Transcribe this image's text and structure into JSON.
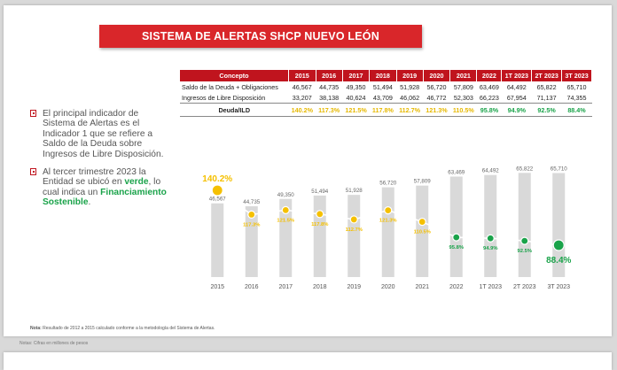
{
  "title": "SISTEMA DE ALERTAS SHCP NUEVO LEÓN",
  "table": {
    "header": [
      "Concepto",
      "2015",
      "2016",
      "2017",
      "2018",
      "2019",
      "2020",
      "2021",
      "2022",
      "1T 2023",
      "2T 2023",
      "3T 2023"
    ],
    "rows": [
      {
        "concept": "Saldo de la Deuda + Obligaciones",
        "values": [
          "46,567",
          "44,735",
          "49,350",
          "51,494",
          "51,928",
          "56,720",
          "57,809",
          "63,469",
          "64,492",
          "65,822",
          "65,710"
        ]
      },
      {
        "concept": "Ingresos de Libre Disposición",
        "values": [
          "33,207",
          "38,138",
          "40,624",
          "43,709",
          "46,062",
          "46,772",
          "52,303",
          "66,223",
          "67,954",
          "71,137",
          "74,355"
        ]
      }
    ],
    "ratio_row": {
      "concept": "Deuda/ILD",
      "values": [
        "140.2%",
        "117.3%",
        "121.5%",
        "117.8%",
        "112.7%",
        "121.3%",
        "110.5%",
        "95.8%",
        "94.9%",
        "92.5%",
        "88.4%"
      ]
    }
  },
  "bullets": {
    "first": "El principal indicador de Sistema de Alertas es el Indicador 1 que se refiere a Saldo de la Deuda sobre Ingresos de Libre Disposición.",
    "second_pre": "Al tercer trimestre 2023 la Entidad se ubicó en ",
    "second_kw": "verde",
    "second_mid": ", lo cual indica un ",
    "second_kw2": "Financiamiento Sostenible",
    "second_post": "."
  },
  "colors": {
    "red": "#c0141e",
    "yellow": "#f5c000",
    "green": "#1aa34a",
    "bar": "#d9d9d9"
  },
  "chart_data": {
    "type": "bar",
    "categories": [
      "2015",
      "2016",
      "2017",
      "2018",
      "2019",
      "2020",
      "2021",
      "2022",
      "1T 2023",
      "2T 2023",
      "3T 2023"
    ],
    "bar_labels": [
      "46,567",
      "44,735",
      "49,350",
      "51,494",
      "51,928",
      "56,720",
      "57,809",
      "63,469",
      "64,492",
      "65,822",
      "65,710"
    ],
    "values": [
      46567,
      44735,
      49350,
      51494,
      51928,
      56720,
      57809,
      63469,
      64492,
      65822,
      65710
    ],
    "ratio_labels": [
      "140.2%",
      "117.3%",
      "121.5%",
      "117.8%",
      "112.7%",
      "121.3%",
      "110.5%",
      "95.8%",
      "94.9%",
      "92.5%",
      "88.4%"
    ],
    "ratio": [
      140.2,
      117.3,
      121.5,
      117.8,
      112.7,
      121.3,
      110.5,
      95.8,
      94.9,
      92.5,
      88.4
    ],
    "ratio_colors": [
      "yellow",
      "yellow",
      "yellow",
      "yellow",
      "yellow",
      "yellow",
      "yellow",
      "green",
      "green",
      "green",
      "green"
    ],
    "legend": "none"
  },
  "note": {
    "label": "Nota:",
    "text": " Resultado de 2012 a 2015 calculado conforme a la metodología del Sistema de Alertas."
  },
  "footer_note": "Notas: Cifras en millones de pesos"
}
